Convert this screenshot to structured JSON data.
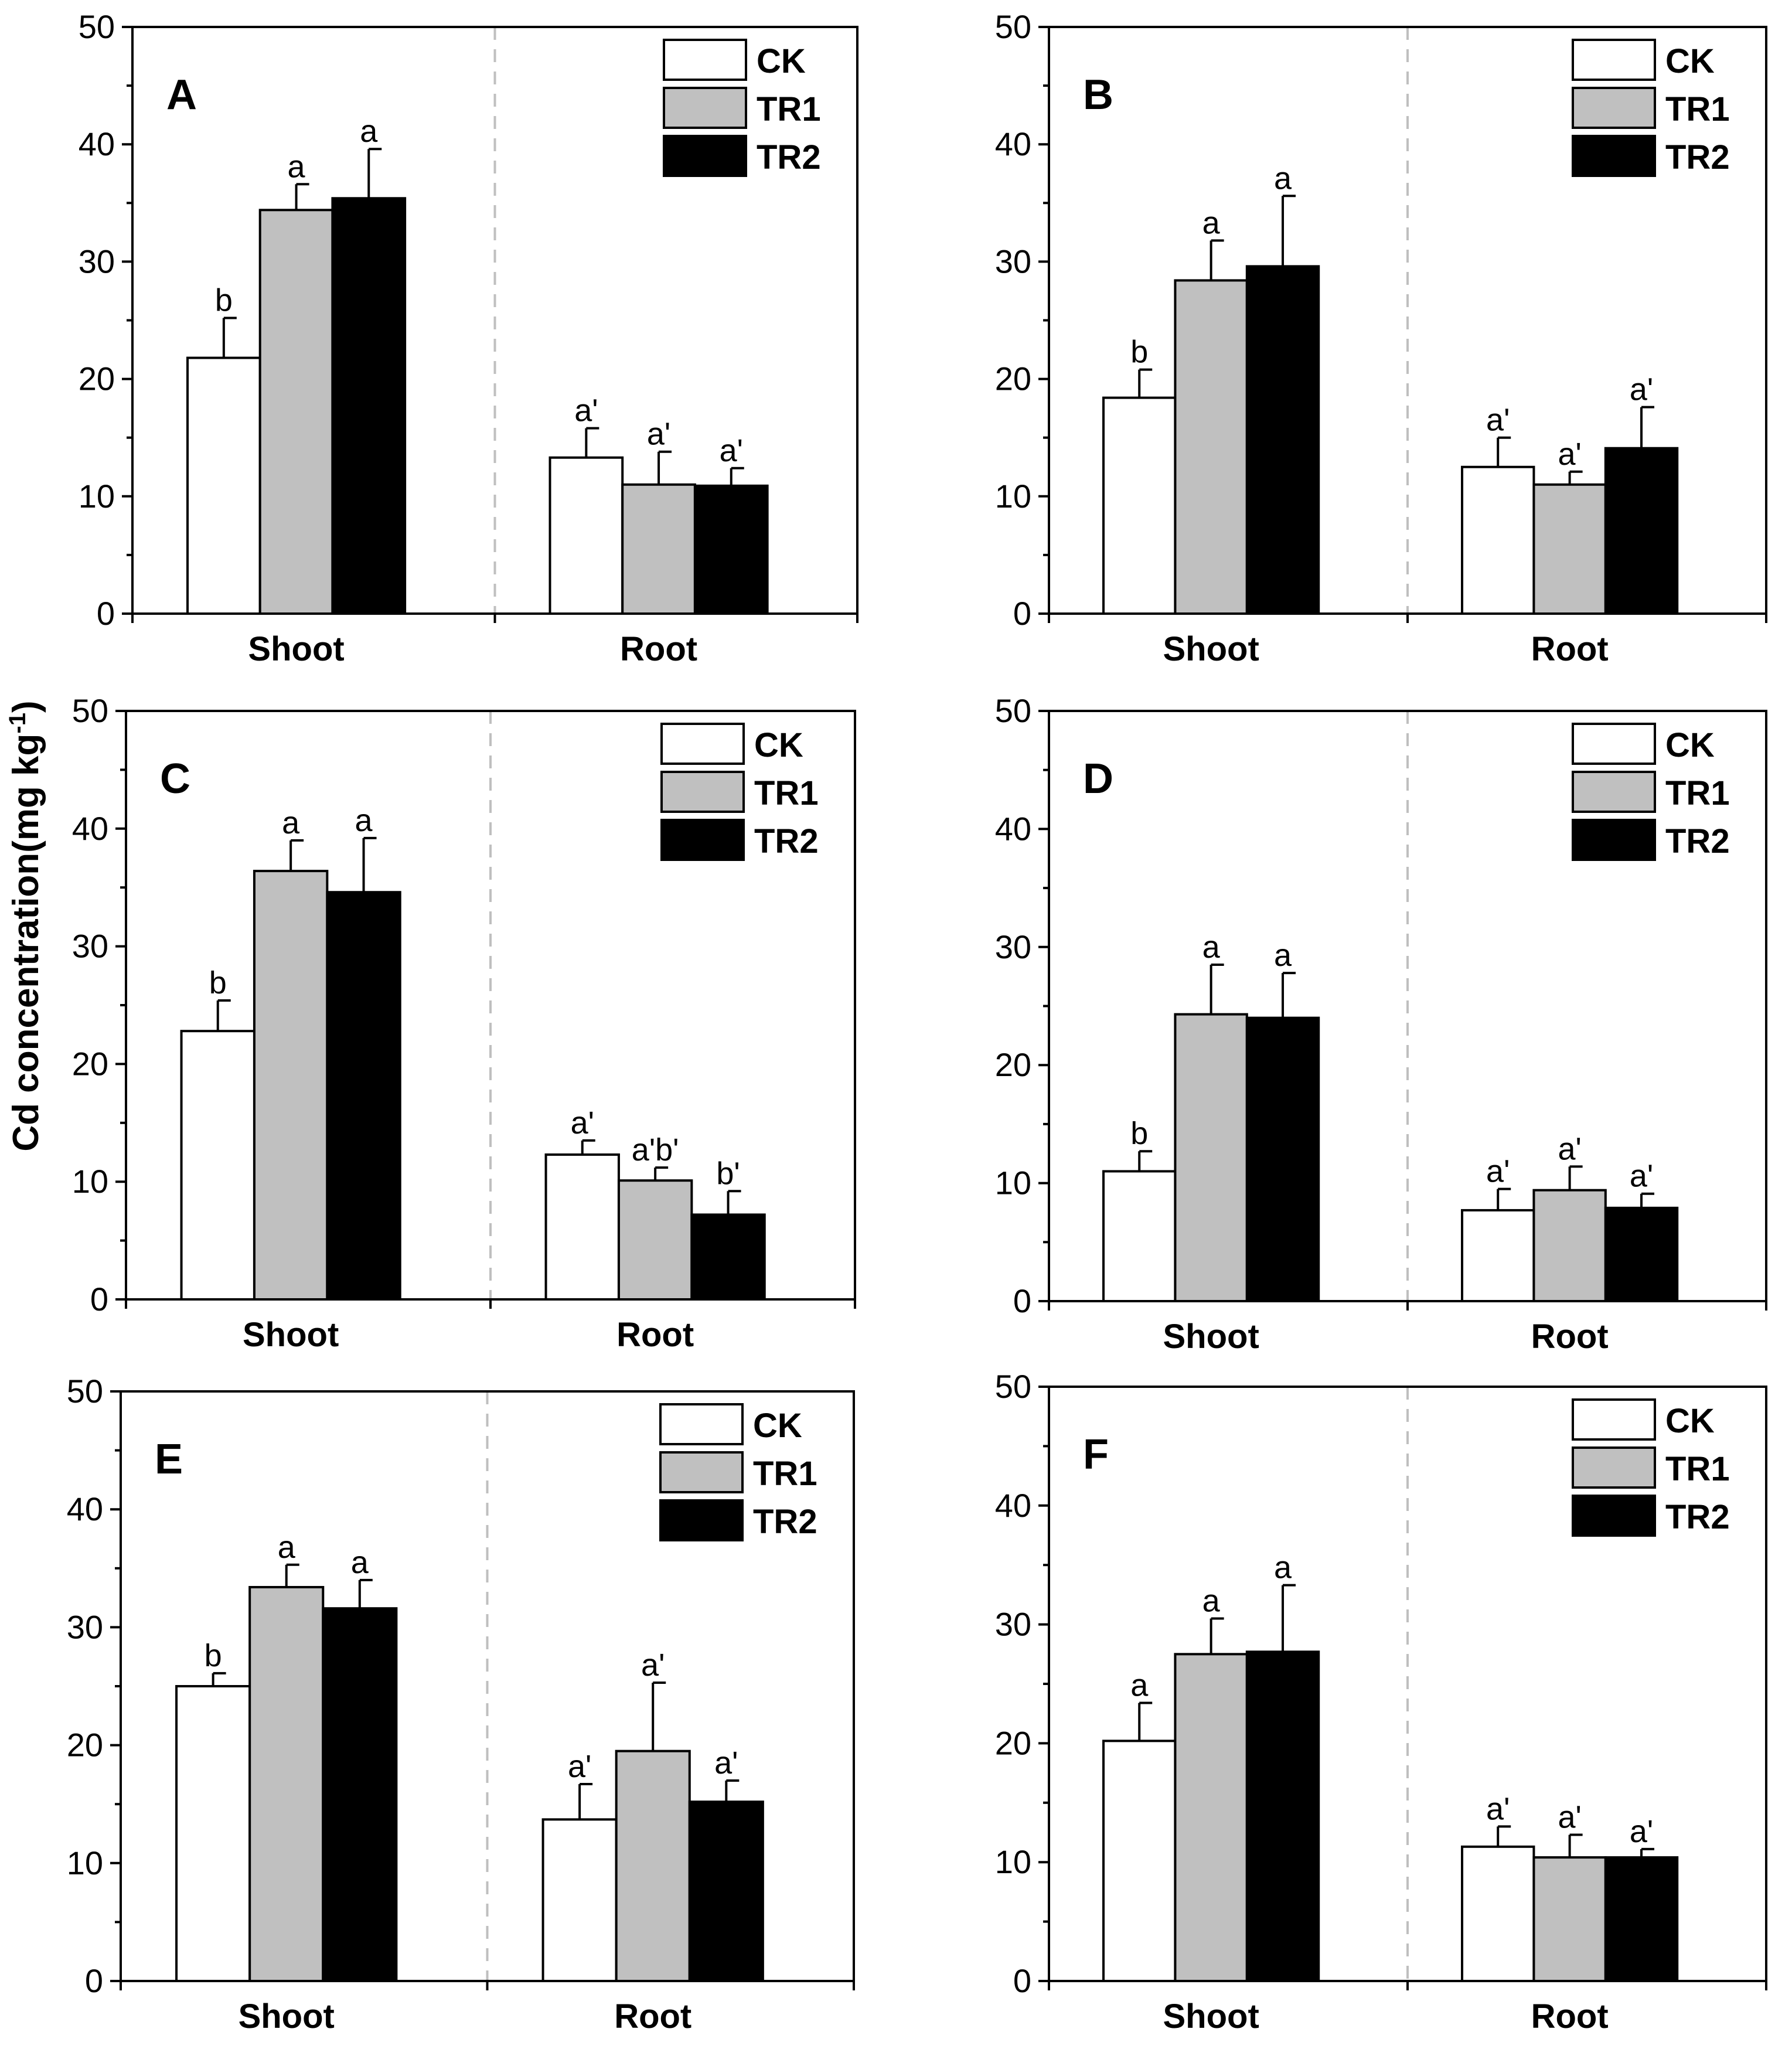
{
  "figure": {
    "ylabel": "Cd concentration(mg kg",
    "ylabel_sup": "-1",
    "ylabel_close": ")"
  },
  "legend": [
    {
      "name": "CK",
      "fill": "#ffffff"
    },
    {
      "name": "TR1",
      "fill": "#c0c0c0"
    },
    {
      "name": "TR2",
      "fill": "#000000"
    }
  ],
  "colors": {
    "axis": "#000000",
    "divider": "#bfbfbf",
    "background": "#ffffff"
  },
  "chart_data": [
    {
      "panel": "A",
      "type": "bar",
      "categories": [
        "Shoot",
        "Root"
      ],
      "ylim": [
        0,
        50
      ],
      "yticks": [
        0,
        10,
        20,
        30,
        40,
        50
      ],
      "series": [
        {
          "name": "CK",
          "values": [
            21.8,
            13.3
          ],
          "errors": [
            3.4,
            2.5
          ],
          "letters": [
            "b",
            "a'"
          ]
        },
        {
          "name": "TR1",
          "values": [
            34.4,
            11.0
          ],
          "errors": [
            2.2,
            2.8
          ],
          "letters": [
            "a",
            "a'"
          ]
        },
        {
          "name": "TR2",
          "values": [
            35.4,
            10.9
          ],
          "errors": [
            4.2,
            1.5
          ],
          "letters": [
            "a",
            "a'"
          ]
        }
      ]
    },
    {
      "panel": "B",
      "type": "bar",
      "categories": [
        "Shoot",
        "Root"
      ],
      "ylim": [
        0,
        50
      ],
      "yticks": [
        0,
        10,
        20,
        30,
        40,
        50
      ],
      "series": [
        {
          "name": "CK",
          "values": [
            18.4,
            12.5
          ],
          "errors": [
            2.4,
            2.5
          ],
          "letters": [
            "b",
            "a'"
          ]
        },
        {
          "name": "TR1",
          "values": [
            28.4,
            11.0
          ],
          "errors": [
            3.4,
            1.1
          ],
          "letters": [
            "a",
            "a'"
          ]
        },
        {
          "name": "TR2",
          "values": [
            29.6,
            14.1
          ],
          "errors": [
            6.0,
            3.5
          ],
          "letters": [
            "a",
            "a'"
          ]
        }
      ]
    },
    {
      "panel": "C",
      "type": "bar",
      "categories": [
        "Shoot",
        "Root"
      ],
      "ylim": [
        0,
        50
      ],
      "yticks": [
        0,
        10,
        20,
        30,
        40,
        50
      ],
      "series": [
        {
          "name": "CK",
          "values": [
            22.8,
            12.3
          ],
          "errors": [
            2.6,
            1.2
          ],
          "letters": [
            "b",
            "a'"
          ]
        },
        {
          "name": "TR1",
          "values": [
            36.4,
            10.1
          ],
          "errors": [
            2.6,
            1.1
          ],
          "letters": [
            "a",
            "a'b'"
          ]
        },
        {
          "name": "TR2",
          "values": [
            34.6,
            7.2
          ],
          "errors": [
            4.6,
            2.0
          ],
          "letters": [
            "a",
            "b'"
          ]
        }
      ]
    },
    {
      "panel": "D",
      "type": "bar",
      "categories": [
        "Shoot",
        "Root"
      ],
      "ylim": [
        0,
        50
      ],
      "yticks": [
        0,
        10,
        20,
        30,
        40,
        50
      ],
      "series": [
        {
          "name": "CK",
          "values": [
            11.0,
            7.7
          ],
          "errors": [
            1.7,
            1.8
          ],
          "letters": [
            "b",
            "a'"
          ]
        },
        {
          "name": "TR1",
          "values": [
            24.3,
            9.4
          ],
          "errors": [
            4.2,
            2.0
          ],
          "letters": [
            "a",
            "a'"
          ]
        },
        {
          "name": "TR2",
          "values": [
            24.0,
            7.9
          ],
          "errors": [
            3.8,
            1.2
          ],
          "letters": [
            "a",
            "a'"
          ]
        }
      ]
    },
    {
      "panel": "E",
      "type": "bar",
      "categories": [
        "Shoot",
        "Root"
      ],
      "ylim": [
        0,
        50
      ],
      "yticks": [
        0,
        10,
        20,
        30,
        40,
        50
      ],
      "series": [
        {
          "name": "CK",
          "values": [
            25.0,
            13.7
          ],
          "errors": [
            1.1,
            3.0
          ],
          "letters": [
            "b",
            "a'"
          ]
        },
        {
          "name": "TR1",
          "values": [
            33.4,
            19.5
          ],
          "errors": [
            1.9,
            5.8
          ],
          "letters": [
            "a",
            "a'"
          ]
        },
        {
          "name": "TR2",
          "values": [
            31.6,
            15.2
          ],
          "errors": [
            2.4,
            1.8
          ],
          "letters": [
            "a",
            "a'"
          ]
        }
      ]
    },
    {
      "panel": "F",
      "type": "bar",
      "categories": [
        "Shoot",
        "Root"
      ],
      "ylim": [
        0,
        50
      ],
      "yticks": [
        0,
        10,
        20,
        30,
        40,
        50
      ],
      "series": [
        {
          "name": "CK",
          "values": [
            20.2,
            11.3
          ],
          "errors": [
            3.2,
            1.7
          ],
          "letters": [
            "a",
            "a'"
          ]
        },
        {
          "name": "TR1",
          "values": [
            27.5,
            10.4
          ],
          "errors": [
            3.0,
            1.9
          ],
          "letters": [
            "a",
            "a'"
          ]
        },
        {
          "name": "TR2",
          "values": [
            27.7,
            10.4
          ],
          "errors": [
            5.6,
            0.7
          ],
          "letters": [
            "a",
            "a'"
          ]
        }
      ]
    }
  ]
}
